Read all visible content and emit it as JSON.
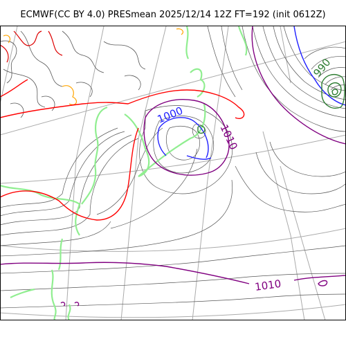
{
  "title": "ECMWF(CC BY 4.0) PRESmean 2025/12/14 12Z FT=192 (init 0612Z)",
  "colors": {
    "contour_minor": "#555555",
    "contour_990": "#2e7d32",
    "contour_1000": "#1f1fff",
    "contour_1010": "#800080",
    "contour_1020": "#ff0000",
    "coast": "#90ee90",
    "graticule": "#aaaaaa",
    "topo_orange": "#ffa500",
    "topo_red": "#dd0000"
  },
  "contour_labels": [
    {
      "text": "1000",
      "color_key": "contour_1000"
    },
    {
      "text": "1010",
      "color_key": "contour_1010"
    },
    {
      "text": "990",
      "color_key": "contour_990"
    },
    {
      "text": "1010",
      "color_key": "contour_1010"
    }
  ]
}
